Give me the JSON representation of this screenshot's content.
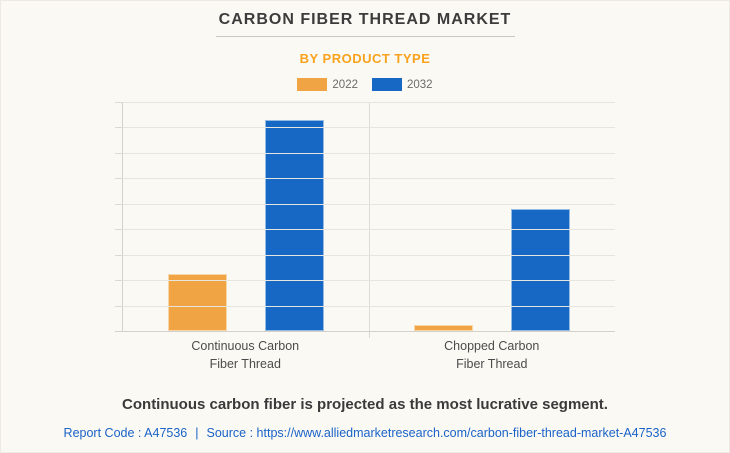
{
  "page": {
    "background": "#fbf9f3"
  },
  "header": {
    "title": "CARBON FIBER THREAD MARKET",
    "subtitle": "BY PRODUCT TYPE",
    "subtitle_color": "#f8a21d"
  },
  "legend": {
    "items": [
      {
        "label": "2022",
        "color": "#f0a444"
      },
      {
        "label": "2032",
        "color": "#1668c4"
      }
    ]
  },
  "chart_data": {
    "type": "bar",
    "title": "CARBON FIBER THREAD MARKET",
    "subtitle": "BY PRODUCT TYPE",
    "categories": [
      "Continuous Carbon Fiber Thread",
      "Chopped Carbon Fiber Thread"
    ],
    "category_lines": [
      [
        "Continuous Carbon",
        "Fiber Thread"
      ],
      [
        "Chopped Carbon",
        "Fiber Thread"
      ]
    ],
    "series": [
      {
        "name": "2022",
        "color": "#f0a444",
        "values": [
          24.9,
          2.6
        ]
      },
      {
        "name": "2032",
        "color": "#1668c4",
        "values": [
          92.1,
          53.3
        ]
      }
    ],
    "xlabel": "",
    "ylabel": "",
    "ylim": [
      0,
      100
    ],
    "y_axis_tick_labels_visible": false,
    "values_note": "Y axis is unlabeled in source image; values estimated from bar heights relative to plot area (0-100 scale)",
    "gridlines": {
      "horizontal_count": 10,
      "vertical_mid": true,
      "grid_on": true
    },
    "legend_position": "top"
  },
  "caption": {
    "text": "Continuous carbon fiber is projected as the most lucrative segment."
  },
  "footer": {
    "report_code": "Report Code : A47536",
    "separator": "|",
    "source_label": "Source :",
    "source_url": "https://www.alliedmarketresearch.com/carbon-fiber-thread-market-A47536"
  }
}
